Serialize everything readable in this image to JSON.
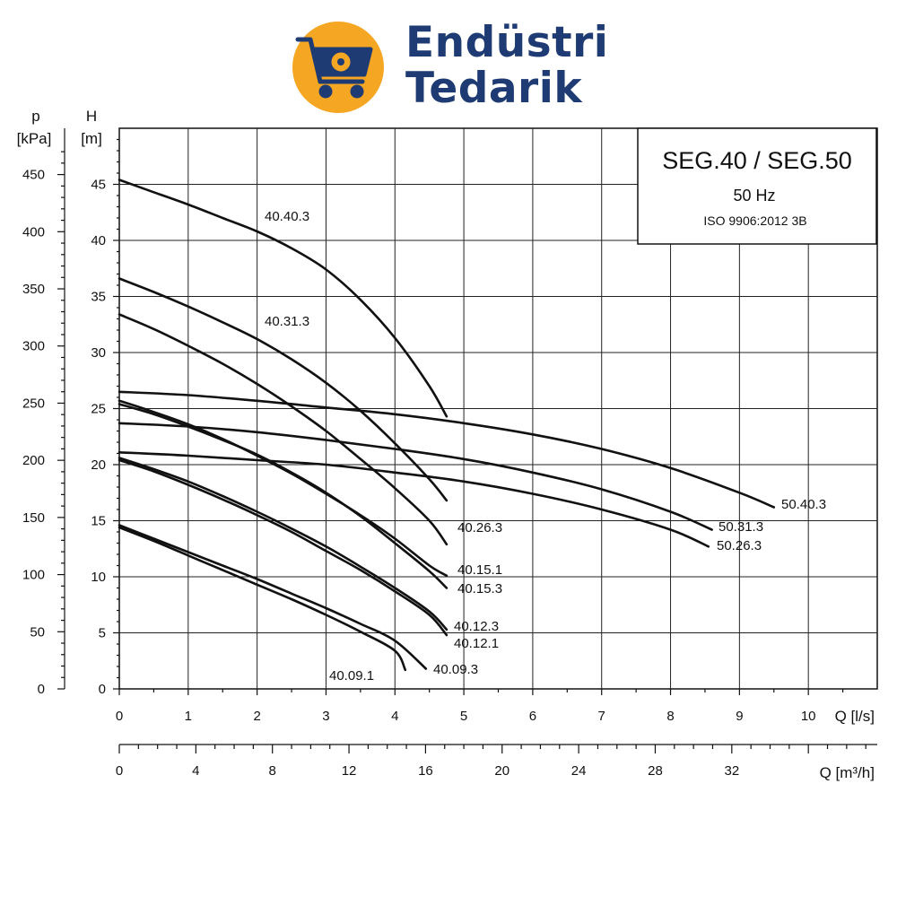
{
  "brand": {
    "line1": "Endüstri",
    "line2": "Tedarik",
    "circle_color": "#f5a623",
    "text_color": "#1f3b73",
    "icon": "shopping-cart-gear-icon"
  },
  "chart_data": {
    "type": "line",
    "title": "SEG.40 / SEG.50",
    "subtitle": "50 Hz",
    "standard": "ISO 9906:2012 3B",
    "xlabel": "Q [l/s]",
    "x2label": "Q [m³/h]",
    "ylabel": "H",
    "ylabel_unit": "[m]",
    "y2label": "p",
    "y2label_unit": "[kPa]",
    "xlim": [
      0,
      11
    ],
    "ylim": [
      0,
      50
    ],
    "x_ticks": [
      0,
      1,
      2,
      3,
      4,
      5,
      6,
      7,
      8,
      9,
      10
    ],
    "y_ticks": [
      0,
      5,
      10,
      15,
      20,
      25,
      30,
      35,
      40,
      45
    ],
    "x2_ticks": [
      0,
      4,
      8,
      12,
      16,
      20,
      24,
      28,
      32
    ],
    "p_ticks": [
      0,
      50,
      100,
      150,
      200,
      250,
      300,
      350,
      400,
      450
    ],
    "grid": true,
    "series": [
      {
        "name": "40.40.3",
        "x": [
          0,
          0.5,
          1,
          1.5,
          2,
          2.5,
          3,
          3.5,
          4,
          4.5,
          4.75
        ],
        "y": [
          45.4,
          44.3,
          43.2,
          42.0,
          40.8,
          39.3,
          37.4,
          34.7,
          31.3,
          27.0,
          24.3
        ]
      },
      {
        "name": "40.31.3",
        "x": [
          0,
          0.5,
          1,
          1.5,
          2,
          2.5,
          3,
          3.5,
          4,
          4.5,
          4.75
        ],
        "y": [
          36.6,
          35.4,
          34.1,
          32.7,
          31.2,
          29.4,
          27.3,
          24.8,
          21.9,
          18.7,
          16.8
        ]
      },
      {
        "name": "40.26.3",
        "x": [
          0,
          0.5,
          1,
          1.5,
          2,
          2.5,
          3,
          3.5,
          4,
          4.5,
          4.75
        ],
        "y": [
          33.4,
          32.1,
          30.6,
          29.0,
          27.2,
          25.2,
          23.0,
          20.5,
          17.9,
          15.0,
          12.9
        ]
      },
      {
        "name": "40.15.1",
        "x": [
          0,
          0.5,
          1,
          1.5,
          2,
          2.5,
          3,
          3.5,
          4,
          4.5,
          4.75
        ],
        "y": [
          25.7,
          24.7,
          23.6,
          22.3,
          20.8,
          19.2,
          17.4,
          15.5,
          13.4,
          11.0,
          10.1
        ]
      },
      {
        "name": "40.15.3",
        "x": [
          0,
          0.5,
          1,
          1.5,
          2,
          2.5,
          3,
          3.5,
          4,
          4.5,
          4.75
        ],
        "y": [
          25.4,
          24.5,
          23.4,
          22.2,
          20.9,
          19.3,
          17.5,
          15.4,
          13.0,
          10.5,
          9.0
        ]
      },
      {
        "name": "40.12.3",
        "x": [
          0,
          0.5,
          1,
          1.5,
          2,
          2.5,
          3,
          3.5,
          4,
          4.5,
          4.75
        ],
        "y": [
          20.6,
          19.6,
          18.5,
          17.2,
          15.8,
          14.3,
          12.7,
          10.9,
          9.0,
          6.9,
          5.3
        ]
      },
      {
        "name": "40.12.1",
        "x": [
          0,
          0.5,
          1,
          1.5,
          2,
          2.5,
          3,
          3.5,
          4,
          4.5,
          4.75
        ],
        "y": [
          20.4,
          19.4,
          18.2,
          16.9,
          15.5,
          14.0,
          12.3,
          10.6,
          8.7,
          6.6,
          4.8
        ]
      },
      {
        "name": "40.09.3",
        "x": [
          0,
          0.5,
          1,
          1.5,
          2,
          2.5,
          3,
          3.5,
          4,
          4.45
        ],
        "y": [
          14.6,
          13.4,
          12.2,
          11.0,
          9.8,
          8.5,
          7.2,
          5.8,
          4.3,
          1.8
        ]
      },
      {
        "name": "40.09.1",
        "x": [
          0,
          0.5,
          1,
          1.5,
          2,
          2.5,
          3,
          3.5,
          4,
          4.15
        ],
        "y": [
          14.4,
          13.2,
          11.9,
          10.6,
          9.3,
          8.0,
          6.6,
          5.1,
          3.4,
          1.7
        ]
      },
      {
        "name": "50.40.3",
        "x": [
          0,
          1,
          2,
          3,
          4,
          5,
          6,
          7,
          8,
          9,
          9.5
        ],
        "y": [
          26.5,
          26.2,
          25.7,
          25.1,
          24.5,
          23.7,
          22.7,
          21.4,
          19.7,
          17.5,
          16.2
        ]
      },
      {
        "name": "50.31.3",
        "x": [
          0,
          1,
          2,
          3,
          4,
          5,
          6,
          7,
          8,
          8.6
        ],
        "y": [
          23.7,
          23.4,
          22.9,
          22.2,
          21.4,
          20.5,
          19.3,
          17.8,
          15.8,
          14.2
        ]
      },
      {
        "name": "50.26.3",
        "x": [
          0,
          1,
          2,
          3,
          4,
          5,
          6,
          7,
          8,
          8.55
        ],
        "y": [
          21.1,
          20.8,
          20.4,
          20.0,
          19.3,
          18.5,
          17.4,
          16.0,
          14.2,
          12.7
        ]
      }
    ]
  }
}
